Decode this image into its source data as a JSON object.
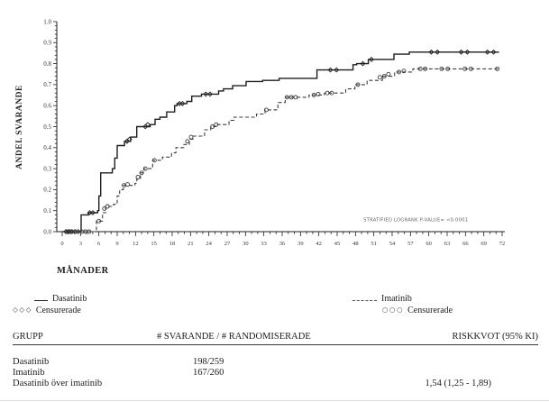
{
  "figure": {
    "background": "#ffffff",
    "ink": "#1f1f1f",
    "muted": "#666666"
  },
  "chart_data": {
    "type": "line",
    "variant": "kaplan_meier_step",
    "title": "",
    "xlabel": "MÅNADER",
    "ylabel": "ANDEL SVARANDE",
    "xlim": [
      0,
      72
    ],
    "ylim": [
      0.0,
      1.0
    ],
    "grid": false,
    "legend_position": "below",
    "xticks": [
      0,
      3,
      6,
      9,
      12,
      15,
      18,
      21,
      24,
      27,
      30,
      33,
      36,
      39,
      42,
      45,
      48,
      51,
      54,
      57,
      60,
      63,
      66,
      69,
      72
    ],
    "yticks": [
      "0.0",
      "0.1",
      "0.2",
      "0.3",
      "0.4",
      "0.5",
      "0.6",
      "0.7",
      "0.8",
      "0.9",
      "1.0"
    ],
    "x_minor_step": 1,
    "y_minor_step": 0.02,
    "annotation": {
      "text": "STRATIFIED LOGRANK P-VALUE= <0.0001",
      "month": 49.3,
      "value": 0.05
    },
    "series": [
      {
        "name": "Dasatinib",
        "line": "solid",
        "marker": "diamond",
        "color": "#1f1f1f",
        "points": [
          [
            0,
            0
          ],
          [
            3.1,
            0.08
          ],
          [
            4.3,
            0.09
          ],
          [
            5.8,
            0.1
          ],
          [
            6.0,
            0.17
          ],
          [
            6.3,
            0.28
          ],
          [
            8.2,
            0.3
          ],
          [
            8.6,
            0.35
          ],
          [
            9.0,
            0.41
          ],
          [
            10.2,
            0.43
          ],
          [
            11.2,
            0.45
          ],
          [
            12.2,
            0.5
          ],
          [
            14.4,
            0.51
          ],
          [
            15.2,
            0.535
          ],
          [
            16.0,
            0.545
          ],
          [
            17.1,
            0.57
          ],
          [
            18.4,
            0.6
          ],
          [
            18.8,
            0.61
          ],
          [
            20.4,
            0.62
          ],
          [
            21.2,
            0.645
          ],
          [
            22.8,
            0.655
          ],
          [
            25.6,
            0.67
          ],
          [
            26.4,
            0.68
          ],
          [
            27.9,
            0.695
          ],
          [
            30.1,
            0.715
          ],
          [
            32.8,
            0.72
          ],
          [
            35.5,
            0.73
          ],
          [
            41.7,
            0.77
          ],
          [
            47.6,
            0.795
          ],
          [
            48.2,
            0.8
          ],
          [
            50.1,
            0.82
          ],
          [
            54.3,
            0.845
          ],
          [
            56.8,
            0.855
          ],
          [
            71.5,
            0.855
          ]
        ],
        "censored": [
          [
            0.6,
            0
          ],
          [
            1.1,
            0
          ],
          [
            1.6,
            0
          ],
          [
            2.1,
            0
          ],
          [
            2.6,
            0
          ],
          [
            4.5,
            0.09
          ],
          [
            5.0,
            0.09
          ],
          [
            10.6,
            0.43
          ],
          [
            11.0,
            0.44
          ],
          [
            13.6,
            0.5
          ],
          [
            14.0,
            0.51
          ],
          [
            19.2,
            0.61
          ],
          [
            19.7,
            0.61
          ],
          [
            23.5,
            0.655
          ],
          [
            24.2,
            0.655
          ],
          [
            43.9,
            0.77
          ],
          [
            44.9,
            0.77
          ],
          [
            49.2,
            0.8
          ],
          [
            50.6,
            0.82
          ],
          [
            60.4,
            0.855
          ],
          [
            61.4,
            0.855
          ],
          [
            65.3,
            0.855
          ],
          [
            66.3,
            0.855
          ],
          [
            69.6,
            0.855
          ],
          [
            70.6,
            0.855
          ]
        ]
      },
      {
        "name": "Imatinib",
        "line": "dashed",
        "marker": "circle",
        "color": "#3c3c3c",
        "points": [
          [
            0,
            0
          ],
          [
            5.6,
            0.05
          ],
          [
            6.6,
            0.09
          ],
          [
            7.1,
            0.12
          ],
          [
            8.4,
            0.13
          ],
          [
            9.0,
            0.17
          ],
          [
            9.4,
            0.2
          ],
          [
            10.0,
            0.22
          ],
          [
            11.9,
            0.23
          ],
          [
            12.2,
            0.25
          ],
          [
            12.8,
            0.28
          ],
          [
            13.4,
            0.3
          ],
          [
            14.8,
            0.34
          ],
          [
            16.4,
            0.355
          ],
          [
            17.9,
            0.375
          ],
          [
            18.6,
            0.4
          ],
          [
            19.9,
            0.415
          ],
          [
            20.8,
            0.44
          ],
          [
            21.4,
            0.455
          ],
          [
            23.3,
            0.485
          ],
          [
            24.3,
            0.5
          ],
          [
            25.4,
            0.51
          ],
          [
            27.3,
            0.53
          ],
          [
            28.1,
            0.545
          ],
          [
            31.8,
            0.56
          ],
          [
            33.2,
            0.58
          ],
          [
            35.3,
            0.615
          ],
          [
            36.5,
            0.64
          ],
          [
            40.4,
            0.65
          ],
          [
            42.9,
            0.66
          ],
          [
            46.4,
            0.68
          ],
          [
            47.9,
            0.7
          ],
          [
            49.9,
            0.72
          ],
          [
            52.4,
            0.74
          ],
          [
            54.4,
            0.76
          ],
          [
            57.4,
            0.775
          ],
          [
            71.5,
            0.775
          ]
        ],
        "censored": [
          [
            0.8,
            0
          ],
          [
            1.4,
            0
          ],
          [
            2.1,
            0
          ],
          [
            3.2,
            0
          ],
          [
            3.8,
            0
          ],
          [
            4.4,
            0
          ],
          [
            6.0,
            0.05
          ],
          [
            6.9,
            0.11
          ],
          [
            7.4,
            0.12
          ],
          [
            10.1,
            0.22
          ],
          [
            10.7,
            0.225
          ],
          [
            12.4,
            0.26
          ],
          [
            13.0,
            0.28
          ],
          [
            13.6,
            0.3
          ],
          [
            15.1,
            0.34
          ],
          [
            20.5,
            0.43
          ],
          [
            21.1,
            0.45
          ],
          [
            24.6,
            0.5
          ],
          [
            25.2,
            0.51
          ],
          [
            33.4,
            0.58
          ],
          [
            36.8,
            0.64
          ],
          [
            37.5,
            0.64
          ],
          [
            38.2,
            0.64
          ],
          [
            41.2,
            0.65
          ],
          [
            41.9,
            0.655
          ],
          [
            43.4,
            0.66
          ],
          [
            44.1,
            0.66
          ],
          [
            48.4,
            0.7
          ],
          [
            52.0,
            0.735
          ],
          [
            52.7,
            0.74
          ],
          [
            53.4,
            0.75
          ],
          [
            55.1,
            0.76
          ],
          [
            55.9,
            0.765
          ],
          [
            58.6,
            0.775
          ],
          [
            59.4,
            0.775
          ],
          [
            62.1,
            0.775
          ],
          [
            63.1,
            0.775
          ],
          [
            65.9,
            0.775
          ],
          [
            66.9,
            0.775
          ],
          [
            71.2,
            0.775
          ]
        ]
      }
    ]
  },
  "legend": {
    "left": {
      "series": "Dasatinib",
      "censored": "Censurerade",
      "marker": "◇◇◇"
    },
    "right": {
      "series": "Imatinib",
      "censored": "Censurerade",
      "marker": "○○○"
    }
  },
  "table": {
    "headers": [
      "GRUPP",
      "# SVARANDE / # RANDOMISERADE",
      "RISKKVOT (95% KI)"
    ],
    "rows": [
      {
        "group": "Dasatinib",
        "ratio": "198/259",
        "risk": ""
      },
      {
        "group": "Imatinib",
        "ratio": "167/260",
        "risk": ""
      },
      {
        "group": "Dasatinib över imatinib",
        "ratio": "",
        "risk": "1,54 (1,25 - 1,89)"
      }
    ]
  }
}
